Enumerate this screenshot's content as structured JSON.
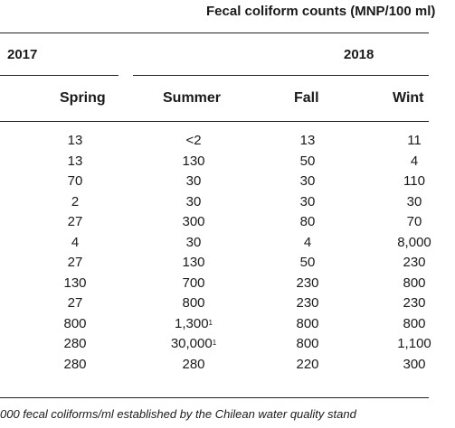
{
  "header": {
    "group_title": "Fecal coliform counts (MNP/100 ml)",
    "year_left": "2017",
    "year_right": "2018"
  },
  "columns": [
    "Spring",
    "Summer",
    "Fall",
    "Wint"
  ],
  "rows": [
    {
      "spring": "13",
      "summer": "<2",
      "summer_sup": "",
      "fall": "13",
      "winter": "11"
    },
    {
      "spring": "13",
      "summer": "130",
      "summer_sup": "",
      "fall": "50",
      "winter": "4"
    },
    {
      "spring": "70",
      "summer": "30",
      "summer_sup": "",
      "fall": "30",
      "winter": "110"
    },
    {
      "spring": "2",
      "summer": "30",
      "summer_sup": "",
      "fall": "30",
      "winter": "30"
    },
    {
      "spring": "27",
      "summer": "300",
      "summer_sup": "",
      "fall": "80",
      "winter": "70"
    },
    {
      "spring": "4",
      "summer": "30",
      "summer_sup": "",
      "fall": "4",
      "winter": "8,000"
    },
    {
      "spring": "27",
      "summer": "130",
      "summer_sup": "",
      "fall": "50",
      "winter": "230"
    },
    {
      "spring": "130",
      "summer": "700",
      "summer_sup": "",
      "fall": "230",
      "winter": "800"
    },
    {
      "spring": "27",
      "summer": "800",
      "summer_sup": "",
      "fall": "230",
      "winter": "230"
    },
    {
      "spring": "800",
      "summer": "1,300",
      "summer_sup": "1",
      "fall": "800",
      "winter": "800"
    },
    {
      "spring": "280",
      "summer": "30,000",
      "summer_sup": "1",
      "fall": "800",
      "winter": "1,100"
    },
    {
      "spring": "280",
      "summer": "280",
      "summer_sup": "",
      "fall": "220",
      "winter": "300"
    }
  ],
  "footnote": "000 fecal coliforms/ml established by the Chilean water quality stand"
}
